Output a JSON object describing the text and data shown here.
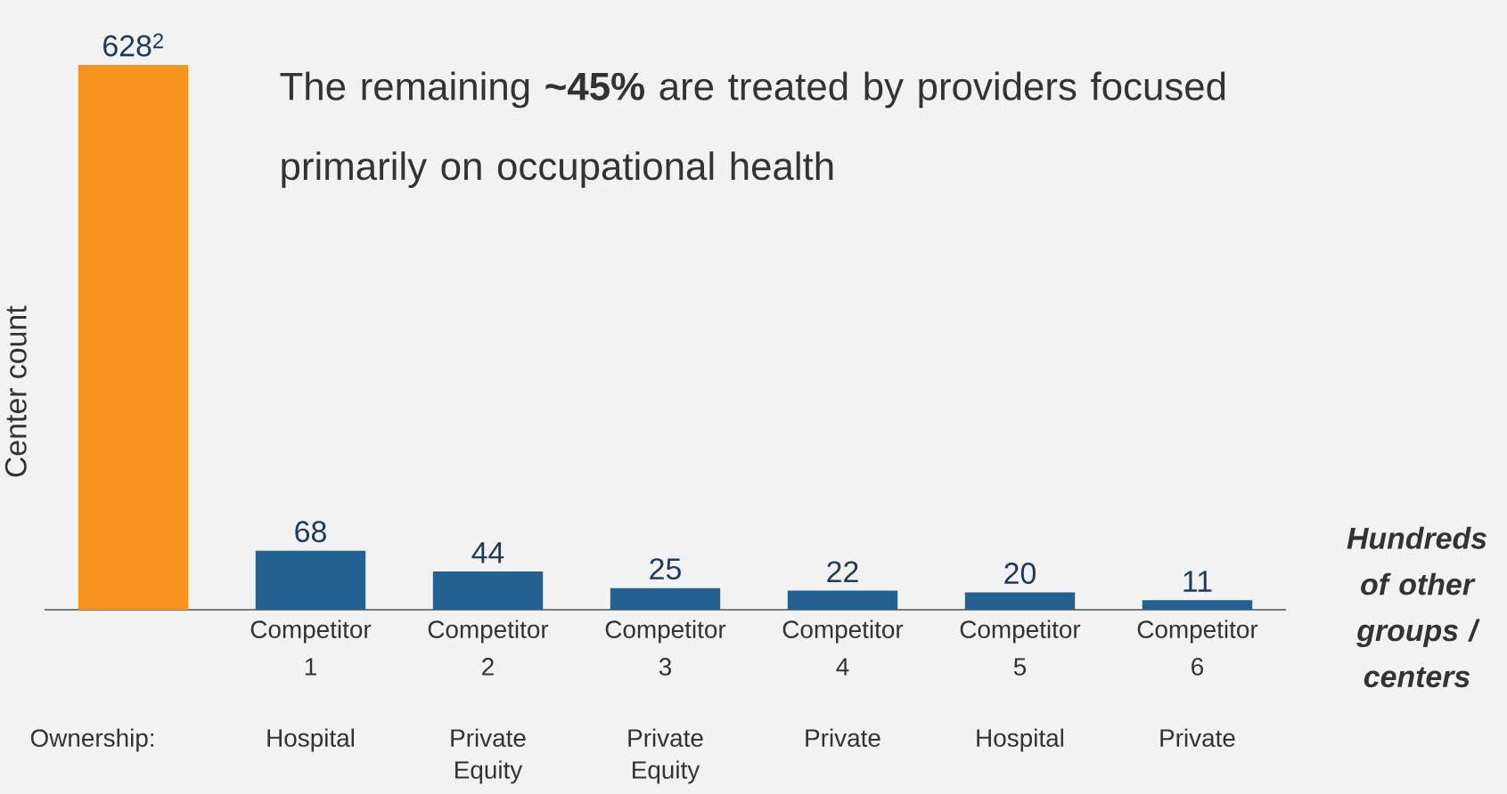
{
  "chart_data": {
    "type": "bar",
    "ylabel": "Center count",
    "categories": [
      null,
      "Competitor 1",
      "Competitor 2",
      "Competitor 3",
      "Competitor 4",
      "Competitor 5",
      "Competitor 6"
    ],
    "values": [
      628,
      68,
      44,
      25,
      22,
      20,
      11
    ],
    "value_labels": [
      "628$^{2}$",
      "68",
      "44",
      "25",
      "22",
      "20",
      "11"
    ],
    "colors": [
      "#f7941d",
      "#226192",
      "#226192",
      "#226192",
      "#226192",
      "#226192",
      "#226192"
    ],
    "annotations": [
      "The remaining **~45%** are treated by providers focused primarily on occupational health",
      "Ownership:",
      "Hospital",
      "Private Equity",
      "Private Equity",
      "Private",
      "Hospital",
      "Private",
      "**Hundreds of other groups / centers**"
    ]
  }
}
